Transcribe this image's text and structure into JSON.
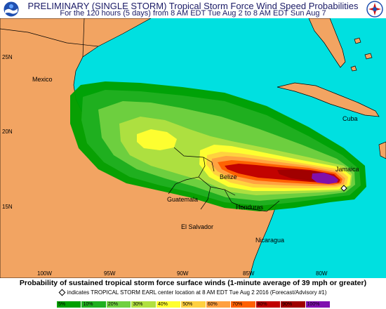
{
  "header": {
    "title_line1": "PRELIMINARY (SINGLE STORM) Tropical Storm Force Wind Speed Probabilities",
    "title_line2": "For the 120 hours (5 days) from 8 AM EDT Tue Aug 2 to 8 AM EDT Sun Aug 7",
    "logo_left": "noaa-logo",
    "logo_right": "nws-logo"
  },
  "map": {
    "colors": {
      "ocean": "#00e0e0",
      "land": "#f2a462",
      "border": "#000000",
      "p5": "#00a000",
      "p10": "#20b020",
      "p20": "#70d040",
      "p30": "#b0e040",
      "p40": "#ffff30",
      "p50": "#ffd040",
      "p60": "#ffa040",
      "p70": "#ff6000",
      "p80": "#c00000",
      "p90": "#a00000",
      "p100": "#8010b0"
    },
    "lat_labels": [
      "25N",
      "20N",
      "15N"
    ],
    "lon_labels": [
      "100W",
      "95W",
      "90W",
      "85W",
      "80W"
    ],
    "place_labels": {
      "mexico": "Mexico",
      "cuba": "Cuba",
      "jamaica": "Jamaica",
      "belize": "Belize",
      "guatemala": "Guatemala",
      "honduras": "Honduras",
      "el_salvador": "El Salvador",
      "nicaragua": "Nicaragua"
    },
    "storm_marker": "storm-center-diamond"
  },
  "footer": {
    "caption": "Probability of sustained tropical storm force surface winds (1-minute average of 39 mph or greater)",
    "note": "indicates TROPICAL STORM EARL center location at 8 AM EDT Tue Aug 2 2016 (Forecast/Advisory #1)",
    "legend": [
      {
        "label": "5%",
        "color": "#00a000"
      },
      {
        "label": "10%",
        "color": "#20b020"
      },
      {
        "label": "20%",
        "color": "#70d040"
      },
      {
        "label": "30%",
        "color": "#b0e040"
      },
      {
        "label": "40%",
        "color": "#ffff30"
      },
      {
        "label": "50%",
        "color": "#ffd040"
      },
      {
        "label": "60%",
        "color": "#ffa040"
      },
      {
        "label": "70%",
        "color": "#ff6000"
      },
      {
        "label": "80%",
        "color": "#c00000"
      },
      {
        "label": "90%",
        "color": "#a00000"
      },
      {
        "label": "100%",
        "color": "#8010b0"
      }
    ]
  }
}
